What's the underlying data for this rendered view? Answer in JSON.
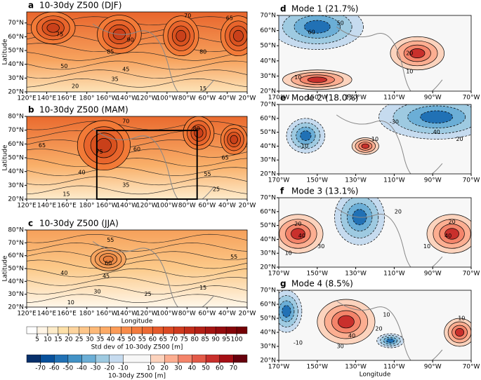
{
  "chart_data": [
    {
      "type": "contour-map",
      "letter": "a",
      "title": "10-30dy Z500 (DJF)",
      "ylabel": "Latitude",
      "xlim": [
        120,
        340
      ],
      "xticks": [
        {
          "value": 120,
          "label": "120°E"
        },
        {
          "value": 140,
          "label": "140°E"
        },
        {
          "value": 160,
          "label": "160°E"
        },
        {
          "value": 180,
          "label": "180°"
        },
        {
          "value": 200,
          "label": "160°W"
        },
        {
          "value": 220,
          "label": "140°W"
        },
        {
          "value": 240,
          "label": "120°W"
        },
        {
          "value": 260,
          "label": "100°W"
        },
        {
          "value": 280,
          "label": "80°W"
        },
        {
          "value": 300,
          "label": "60°W"
        },
        {
          "value": 320,
          "label": "40°W"
        },
        {
          "value": 340,
          "label": "20°W"
        }
      ],
      "ylim": [
        20,
        78
      ],
      "yticks": [
        {
          "value": 20,
          "label": "20°N"
        },
        {
          "value": 30,
          "label": "30°N"
        },
        {
          "value": 40,
          "label": "40°N"
        },
        {
          "value": 50,
          "label": "50°N"
        },
        {
          "value": 60,
          "label": "60°N"
        },
        {
          "value": 70,
          "label": "70°N"
        }
      ],
      "contour_labels": [
        70,
        65,
        75,
        85,
        90,
        80,
        50,
        45,
        35,
        20,
        15
      ]
    },
    {
      "type": "contour-map",
      "letter": "b",
      "title": "10-30dy Z500 (MAM)",
      "ylabel": "Latitude",
      "xlim": [
        120,
        340
      ],
      "xticks": [
        {
          "value": 120,
          "label": "120°E"
        },
        {
          "value": 140,
          "label": "140°E"
        },
        {
          "value": 160,
          "label": "160°E"
        },
        {
          "value": 180,
          "label": "180°"
        },
        {
          "value": 200,
          "label": "160°W"
        },
        {
          "value": 220,
          "label": "140°W"
        },
        {
          "value": 240,
          "label": "120°W"
        },
        {
          "value": 260,
          "label": "100°W"
        },
        {
          "value": 280,
          "label": "80°W"
        },
        {
          "value": 300,
          "label": "60°W"
        },
        {
          "value": 320,
          "label": "40°W"
        },
        {
          "value": 340,
          "label": "20°W"
        }
      ],
      "ylim": [
        20,
        80
      ],
      "yticks": [
        {
          "value": 20,
          "label": "20°N"
        },
        {
          "value": 30,
          "label": "30°N"
        },
        {
          "value": 40,
          "label": "40°N"
        },
        {
          "value": 50,
          "label": "50°N"
        },
        {
          "value": 60,
          "label": "60°N"
        },
        {
          "value": 70,
          "label": "70°N"
        },
        {
          "value": 80,
          "label": "80°N"
        }
      ],
      "contour_labels": [
        70,
        65,
        75,
        80,
        60,
        65,
        55,
        40,
        35,
        25,
        15
      ]
    },
    {
      "type": "contour-map",
      "letter": "c",
      "title": "10-30dy Z500 (JJA)",
      "ylabel": "Latitude",
      "xlabel": "Longitude",
      "xlim": [
        120,
        340
      ],
      "xticks": [
        {
          "value": 120,
          "label": "120°E"
        },
        {
          "value": 140,
          "label": "140°E"
        },
        {
          "value": 160,
          "label": "160°E"
        },
        {
          "value": 180,
          "label": "180°"
        },
        {
          "value": 200,
          "label": "160°W"
        },
        {
          "value": 220,
          "label": "140°W"
        },
        {
          "value": 240,
          "label": "120°W"
        },
        {
          "value": 260,
          "label": "100°W"
        },
        {
          "value": 280,
          "label": "80°W"
        },
        {
          "value": 300,
          "label": "60°W"
        },
        {
          "value": 320,
          "label": "40°W"
        },
        {
          "value": 340,
          "label": "20°W"
        }
      ],
      "ylim": [
        20,
        80
      ],
      "yticks": [
        {
          "value": 20,
          "label": "20°N"
        },
        {
          "value": 30,
          "label": "30°N"
        },
        {
          "value": 40,
          "label": "40°N"
        },
        {
          "value": 50,
          "label": "50°N"
        },
        {
          "value": 60,
          "label": "60°N"
        },
        {
          "value": 70,
          "label": "70°N"
        },
        {
          "value": 80,
          "label": "80°N"
        }
      ],
      "contour_labels": [
        55,
        60,
        45,
        40,
        30,
        25,
        15,
        10,
        55
      ]
    },
    {
      "type": "contour-map",
      "letter": "d",
      "title": "Mode 1 (21.7%)",
      "xlim": [
        -170,
        -70
      ],
      "xticks": [
        {
          "value": -170,
          "label": "170°W"
        },
        {
          "value": -150,
          "label": "150°W"
        },
        {
          "value": -130,
          "label": "130°W"
        },
        {
          "value": -110,
          "label": "110°W"
        },
        {
          "value": -90,
          "label": "90°W"
        },
        {
          "value": -70,
          "label": "70°W"
        }
      ],
      "ylim": [
        20,
        70
      ],
      "yticks": [
        {
          "value": 20,
          "label": "20°N"
        },
        {
          "value": 30,
          "label": "30°N"
        },
        {
          "value": 40,
          "label": "40°N"
        },
        {
          "value": 50,
          "label": "50°N"
        },
        {
          "value": 60,
          "label": "60°N"
        },
        {
          "value": 70,
          "label": "70°N"
        }
      ],
      "contour_labels": [
        60,
        50,
        20,
        10,
        10
      ]
    },
    {
      "type": "contour-map",
      "letter": "e",
      "title": "Mode 2 (18.0%)",
      "xlim": [
        -170,
        -70
      ],
      "xticks": [
        {
          "value": -170,
          "label": "170°W"
        },
        {
          "value": -150,
          "label": "150°W"
        },
        {
          "value": -130,
          "label": "130°W"
        },
        {
          "value": -110,
          "label": "110°W"
        },
        {
          "value": -90,
          "label": "90°W"
        },
        {
          "value": -70,
          "label": "70°W"
        }
      ],
      "ylim": [
        20,
        70
      ],
      "yticks": [
        {
          "value": 20,
          "label": "20°N"
        },
        {
          "value": 30,
          "label": "30°N"
        },
        {
          "value": 40,
          "label": "40°N"
        },
        {
          "value": 50,
          "label": "50°N"
        },
        {
          "value": 60,
          "label": "60°N"
        },
        {
          "value": 70,
          "label": "70°N"
        }
      ],
      "contour_labels": [
        10,
        -10,
        40,
        20,
        -30
      ]
    },
    {
      "type": "contour-map",
      "letter": "f",
      "title": "Mode 3 (13.1%)",
      "xlim": [
        -170,
        -70
      ],
      "xticks": [
        {
          "value": -170,
          "label": "170°W"
        },
        {
          "value": -150,
          "label": "150°W"
        },
        {
          "value": -130,
          "label": "130°W"
        },
        {
          "value": -110,
          "label": "110°W"
        },
        {
          "value": -90,
          "label": "90°W"
        },
        {
          "value": -70,
          "label": "70°W"
        }
      ],
      "ylim": [
        20,
        70
      ],
      "yticks": [
        {
          "value": 20,
          "label": "20°N"
        },
        {
          "value": 30,
          "label": "30°N"
        },
        {
          "value": 40,
          "label": "40°N"
        },
        {
          "value": 50,
          "label": "50°N"
        },
        {
          "value": 60,
          "label": "60°N"
        },
        {
          "value": 70,
          "label": "70°N"
        }
      ],
      "contour_labels": [
        20,
        40,
        30,
        10,
        20,
        40,
        10,
        20
      ]
    },
    {
      "type": "contour-map",
      "letter": "g",
      "title": "Mode 4 (8.5%)",
      "xlabel": "Longitude",
      "xlim": [
        -170,
        -70
      ],
      "xticks": [
        {
          "value": -170,
          "label": "170°W"
        },
        {
          "value": -150,
          "label": "150°W"
        },
        {
          "value": -130,
          "label": "130°W"
        },
        {
          "value": -110,
          "label": "110°W"
        },
        {
          "value": -90,
          "label": "90°W"
        },
        {
          "value": -70,
          "label": "70°W"
        }
      ],
      "ylim": [
        20,
        70
      ],
      "yticks": [
        {
          "value": 20,
          "label": "20°N"
        },
        {
          "value": 30,
          "label": "30°N"
        },
        {
          "value": 40,
          "label": "40°N"
        },
        {
          "value": 50,
          "label": "50°N"
        },
        {
          "value": 60,
          "label": "60°N"
        },
        {
          "value": 70,
          "label": "70°N"
        }
      ],
      "contour_labels": [
        40,
        30,
        20,
        10,
        -10,
        10
      ]
    },
    {
      "type": "colorbar",
      "label": "Std dev of 10-30dy Z500 [m]",
      "lim": [
        0,
        105
      ],
      "ticks": [
        5,
        10,
        15,
        20,
        25,
        30,
        35,
        40,
        45,
        50,
        55,
        60,
        65,
        70,
        75,
        80,
        85,
        90,
        95,
        100
      ],
      "colors": [
        "#ffffff",
        "#fff5e6",
        "#fdebc8",
        "#fde0a8",
        "#fdd49e",
        "#fdc68a",
        "#fdb978",
        "#fdab67",
        "#fc9c58",
        "#f98c4a",
        "#f47b3d",
        "#ee6a33",
        "#e65a2b",
        "#dc4a24",
        "#d03b1f",
        "#c22d1a",
        "#b42016",
        "#a51512",
        "#950c0e",
        "#850509",
        "#740105"
      ]
    },
    {
      "type": "colorbar",
      "label": "10-30dy Z500 [m]",
      "lim": [
        -80,
        80
      ],
      "ticks": [
        -70,
        -60,
        -50,
        -40,
        -30,
        -20,
        -10,
        10,
        20,
        30,
        40,
        50,
        60,
        70
      ],
      "colors": [
        "#08306b",
        "#08519c",
        "#2171b5",
        "#4292c6",
        "#6baed6",
        "#9ecae1",
        "#c6dbef",
        "#f7f7f7",
        "#fcd3bd",
        "#fcae91",
        "#f4846a",
        "#e35a48",
        "#c9302c",
        "#a50f15",
        "#67000d"
      ]
    }
  ]
}
